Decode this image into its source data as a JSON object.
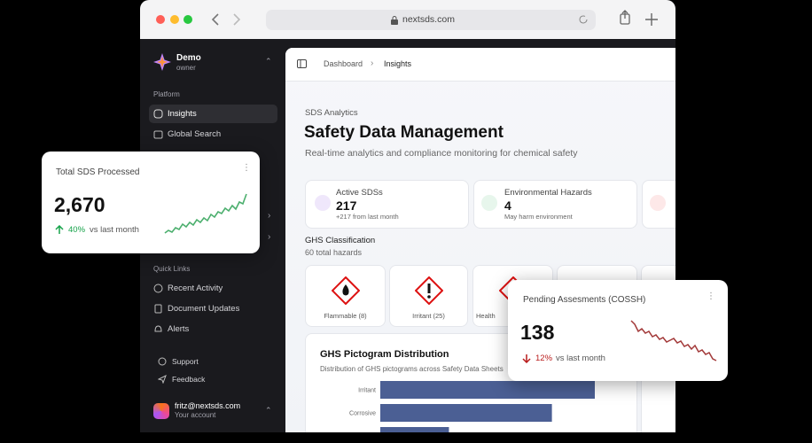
{
  "browser": {
    "url": "nextsds.com"
  },
  "sidebar": {
    "org": "Demo",
    "role": "owner",
    "section": "Platform",
    "nav": [
      "Insights",
      "Global Search"
    ],
    "quick_links_title": "Quick Links",
    "quick_links": [
      "Recent Activity",
      "Document Updates",
      "Alerts"
    ],
    "footer_links": [
      "Support",
      "Feedback"
    ],
    "user": {
      "email": "fritz@nextsds.com",
      "subtitle": "Your account"
    }
  },
  "breadcrumb": [
    "Dashboard",
    "Insights"
  ],
  "header": {
    "eyebrow": "SDS Analytics",
    "title": "Safety Data Management",
    "subtitle": "Real-time analytics and compliance monitoring for chemical safety"
  },
  "stats": [
    {
      "label": "Active SDSs",
      "value": 217,
      "note": "+217 from last month"
    },
    {
      "label": "Environmental Hazards",
      "value": 4,
      "note": "May harm environment"
    }
  ],
  "ghs": {
    "title": "GHS Classification",
    "subtitle": "60 total hazards",
    "pictograms": [
      "Flammable (8)",
      "Irritant (25)",
      "Health"
    ]
  },
  "distribution": {
    "title": "GHS Pictogram Distribution",
    "subtitle": "Distribution of GHS pictograms across Safety Data Sheets",
    "categories": [
      "Irritant",
      "Corrosive",
      null
    ],
    "values": [
      25,
      20,
      8
    ],
    "color": "#4b5f94"
  },
  "cards": [
    {
      "title": "Total SDS Processed",
      "value": "2,670",
      "change": "40%",
      "period": "vs last month"
    },
    {
      "title": "Pending Assesments (COSSH)",
      "value": "138",
      "change": "12%",
      "period": "vs last month"
    }
  ]
}
